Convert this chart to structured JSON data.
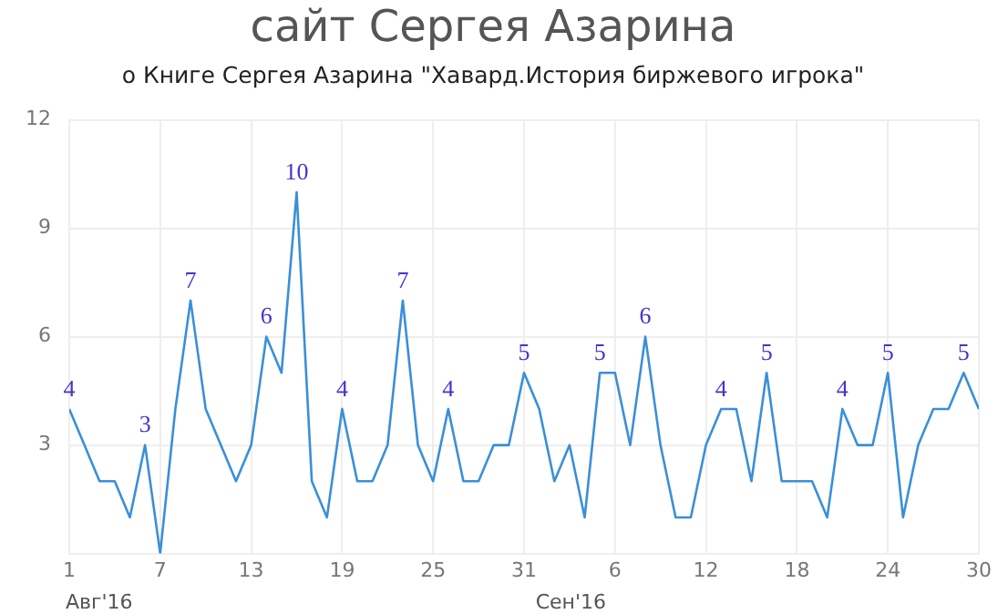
{
  "chart_data": {
    "type": "line",
    "title": "сайт Сергея Азарина",
    "subtitle": "о Книге Сергея Азарина \"Хавард.История биржевого игрока\"",
    "x": [
      "2016-08-01",
      "2016-08-02",
      "2016-08-03",
      "2016-08-04",
      "2016-08-05",
      "2016-08-06",
      "2016-08-07",
      "2016-08-08",
      "2016-08-09",
      "2016-08-10",
      "2016-08-11",
      "2016-08-12",
      "2016-08-13",
      "2016-08-14",
      "2016-08-15",
      "2016-08-16",
      "2016-08-17",
      "2016-08-18",
      "2016-08-19",
      "2016-08-20",
      "2016-08-21",
      "2016-08-22",
      "2016-08-23",
      "2016-08-24",
      "2016-08-25",
      "2016-08-26",
      "2016-08-27",
      "2016-08-28",
      "2016-08-29",
      "2016-08-30",
      "2016-08-31",
      "2016-09-01",
      "2016-09-02",
      "2016-09-03",
      "2016-09-04",
      "2016-09-05",
      "2016-09-06",
      "2016-09-07",
      "2016-09-08",
      "2016-09-09",
      "2016-09-10",
      "2016-09-11",
      "2016-09-12",
      "2016-09-13",
      "2016-09-14",
      "2016-09-15",
      "2016-09-16",
      "2016-09-17",
      "2016-09-18",
      "2016-09-19",
      "2016-09-20",
      "2016-09-21",
      "2016-09-22",
      "2016-09-23",
      "2016-09-24",
      "2016-09-25",
      "2016-09-26",
      "2016-09-27",
      "2016-09-28",
      "2016-09-29",
      "2016-09-30"
    ],
    "series": [
      {
        "color": "#3a8fd9",
        "values": [
          4,
          3,
          2,
          2,
          1,
          3,
          0,
          4,
          7,
          4,
          3,
          2,
          3,
          6,
          5,
          10,
          2,
          1,
          4,
          2,
          2,
          3,
          7,
          3,
          2,
          4,
          2,
          2,
          3,
          3,
          5,
          4,
          2,
          3,
          1,
          5,
          5,
          3,
          6,
          3,
          1,
          1,
          3,
          4,
          4,
          2,
          5,
          2,
          2,
          2,
          1,
          4,
          3,
          3,
          5,
          1,
          3,
          4,
          4,
          5,
          4
        ],
        "value_labels": [
          "4",
          null,
          null,
          null,
          null,
          "3",
          null,
          null,
          "7",
          null,
          null,
          null,
          null,
          "6",
          null,
          "10",
          null,
          null,
          "4",
          null,
          null,
          null,
          "7",
          null,
          null,
          "4",
          null,
          null,
          null,
          null,
          "5",
          null,
          null,
          null,
          null,
          "5",
          null,
          null,
          "6",
          null,
          null,
          null,
          null,
          "4",
          null,
          null,
          "5",
          null,
          null,
          null,
          null,
          "4",
          null,
          null,
          "5",
          null,
          null,
          null,
          null,
          "5",
          null
        ]
      }
    ],
    "xlim": [
      "2016-08-01",
      "2016-09-30"
    ],
    "xticks": [
      {
        "value": "2016-08-01",
        "label": "1"
      },
      {
        "value": "2016-08-07",
        "label": "7"
      },
      {
        "value": "2016-08-13",
        "label": "13"
      },
      {
        "value": "2016-08-19",
        "label": "19"
      },
      {
        "value": "2016-08-25",
        "label": "25"
      },
      {
        "value": "2016-08-31",
        "label": "31"
      },
      {
        "value": "2016-09-06",
        "label": "6"
      },
      {
        "value": "2016-09-12",
        "label": "12"
      },
      {
        "value": "2016-09-18",
        "label": "18"
      },
      {
        "value": "2016-09-24",
        "label": "24"
      },
      {
        "value": "2016-09-30",
        "label": "30"
      }
    ],
    "ylim": [
      0,
      12
    ],
    "yticks": [
      {
        "value": 0,
        "label": null
      },
      3,
      6,
      9,
      12
    ],
    "annotations": [
      "Авг'16",
      "Сен'16"
    ],
    "grid": true,
    "legend": false,
    "marker": "none",
    "line_style": "solid"
  }
}
